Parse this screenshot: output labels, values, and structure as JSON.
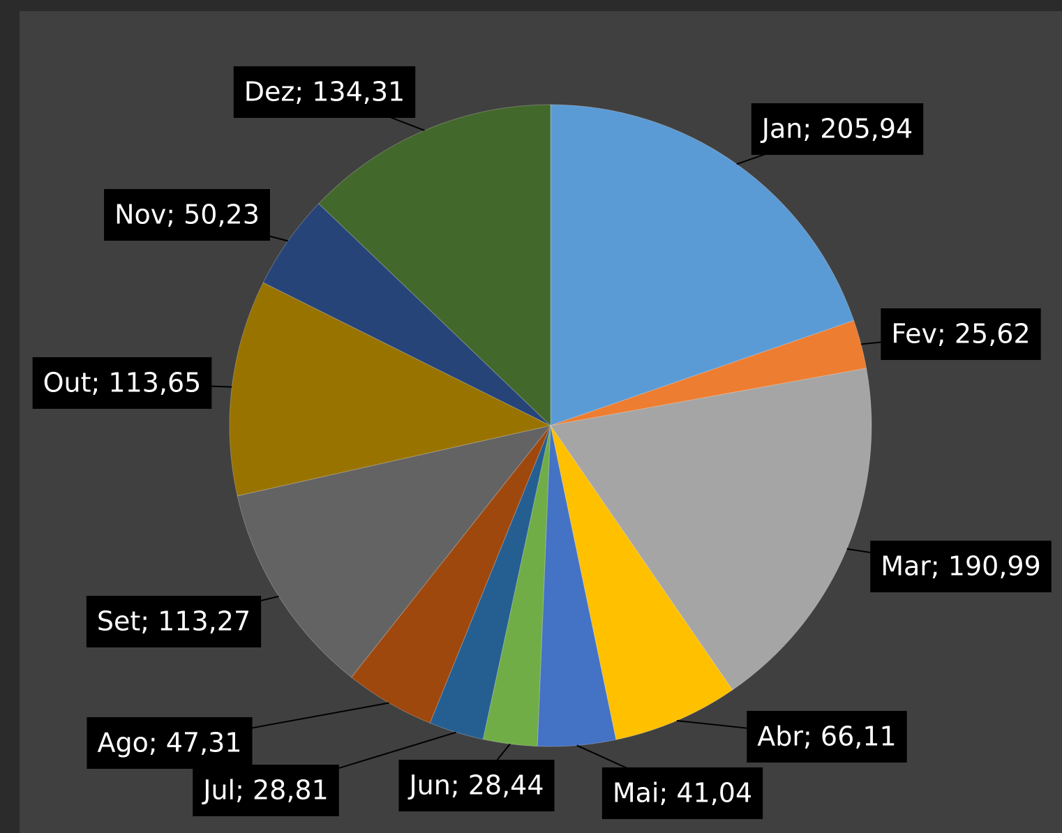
{
  "chart_data": {
    "type": "pie",
    "values": [
      205.94,
      25.62,
      190.99,
      66.11,
      41.04,
      28.44,
      28.81,
      47.31,
      113.27,
      113.65,
      50.23,
      134.31
    ],
    "value_labels": [
      "Jan; 205,94",
      "Fev; 25,62",
      "Mar; 190,99",
      "Abr; 66,11",
      "Mai; 41,04",
      "Jun; 28,44",
      "Jul; 28,81",
      "Ago; 47,31",
      "Set; 113,27",
      "Out; 113,65",
      "Nov; 50,23",
      "Dez; 134,31"
    ],
    "colors": [
      "#5b9bd5",
      "#ed7d31",
      "#a5a5a5",
      "#ffc000",
      "#4472c4",
      "#70ad47",
      "#255e91",
      "#9e480e",
      "#636363",
      "#997300",
      "#264478",
      "#43682b"
    ]
  }
}
